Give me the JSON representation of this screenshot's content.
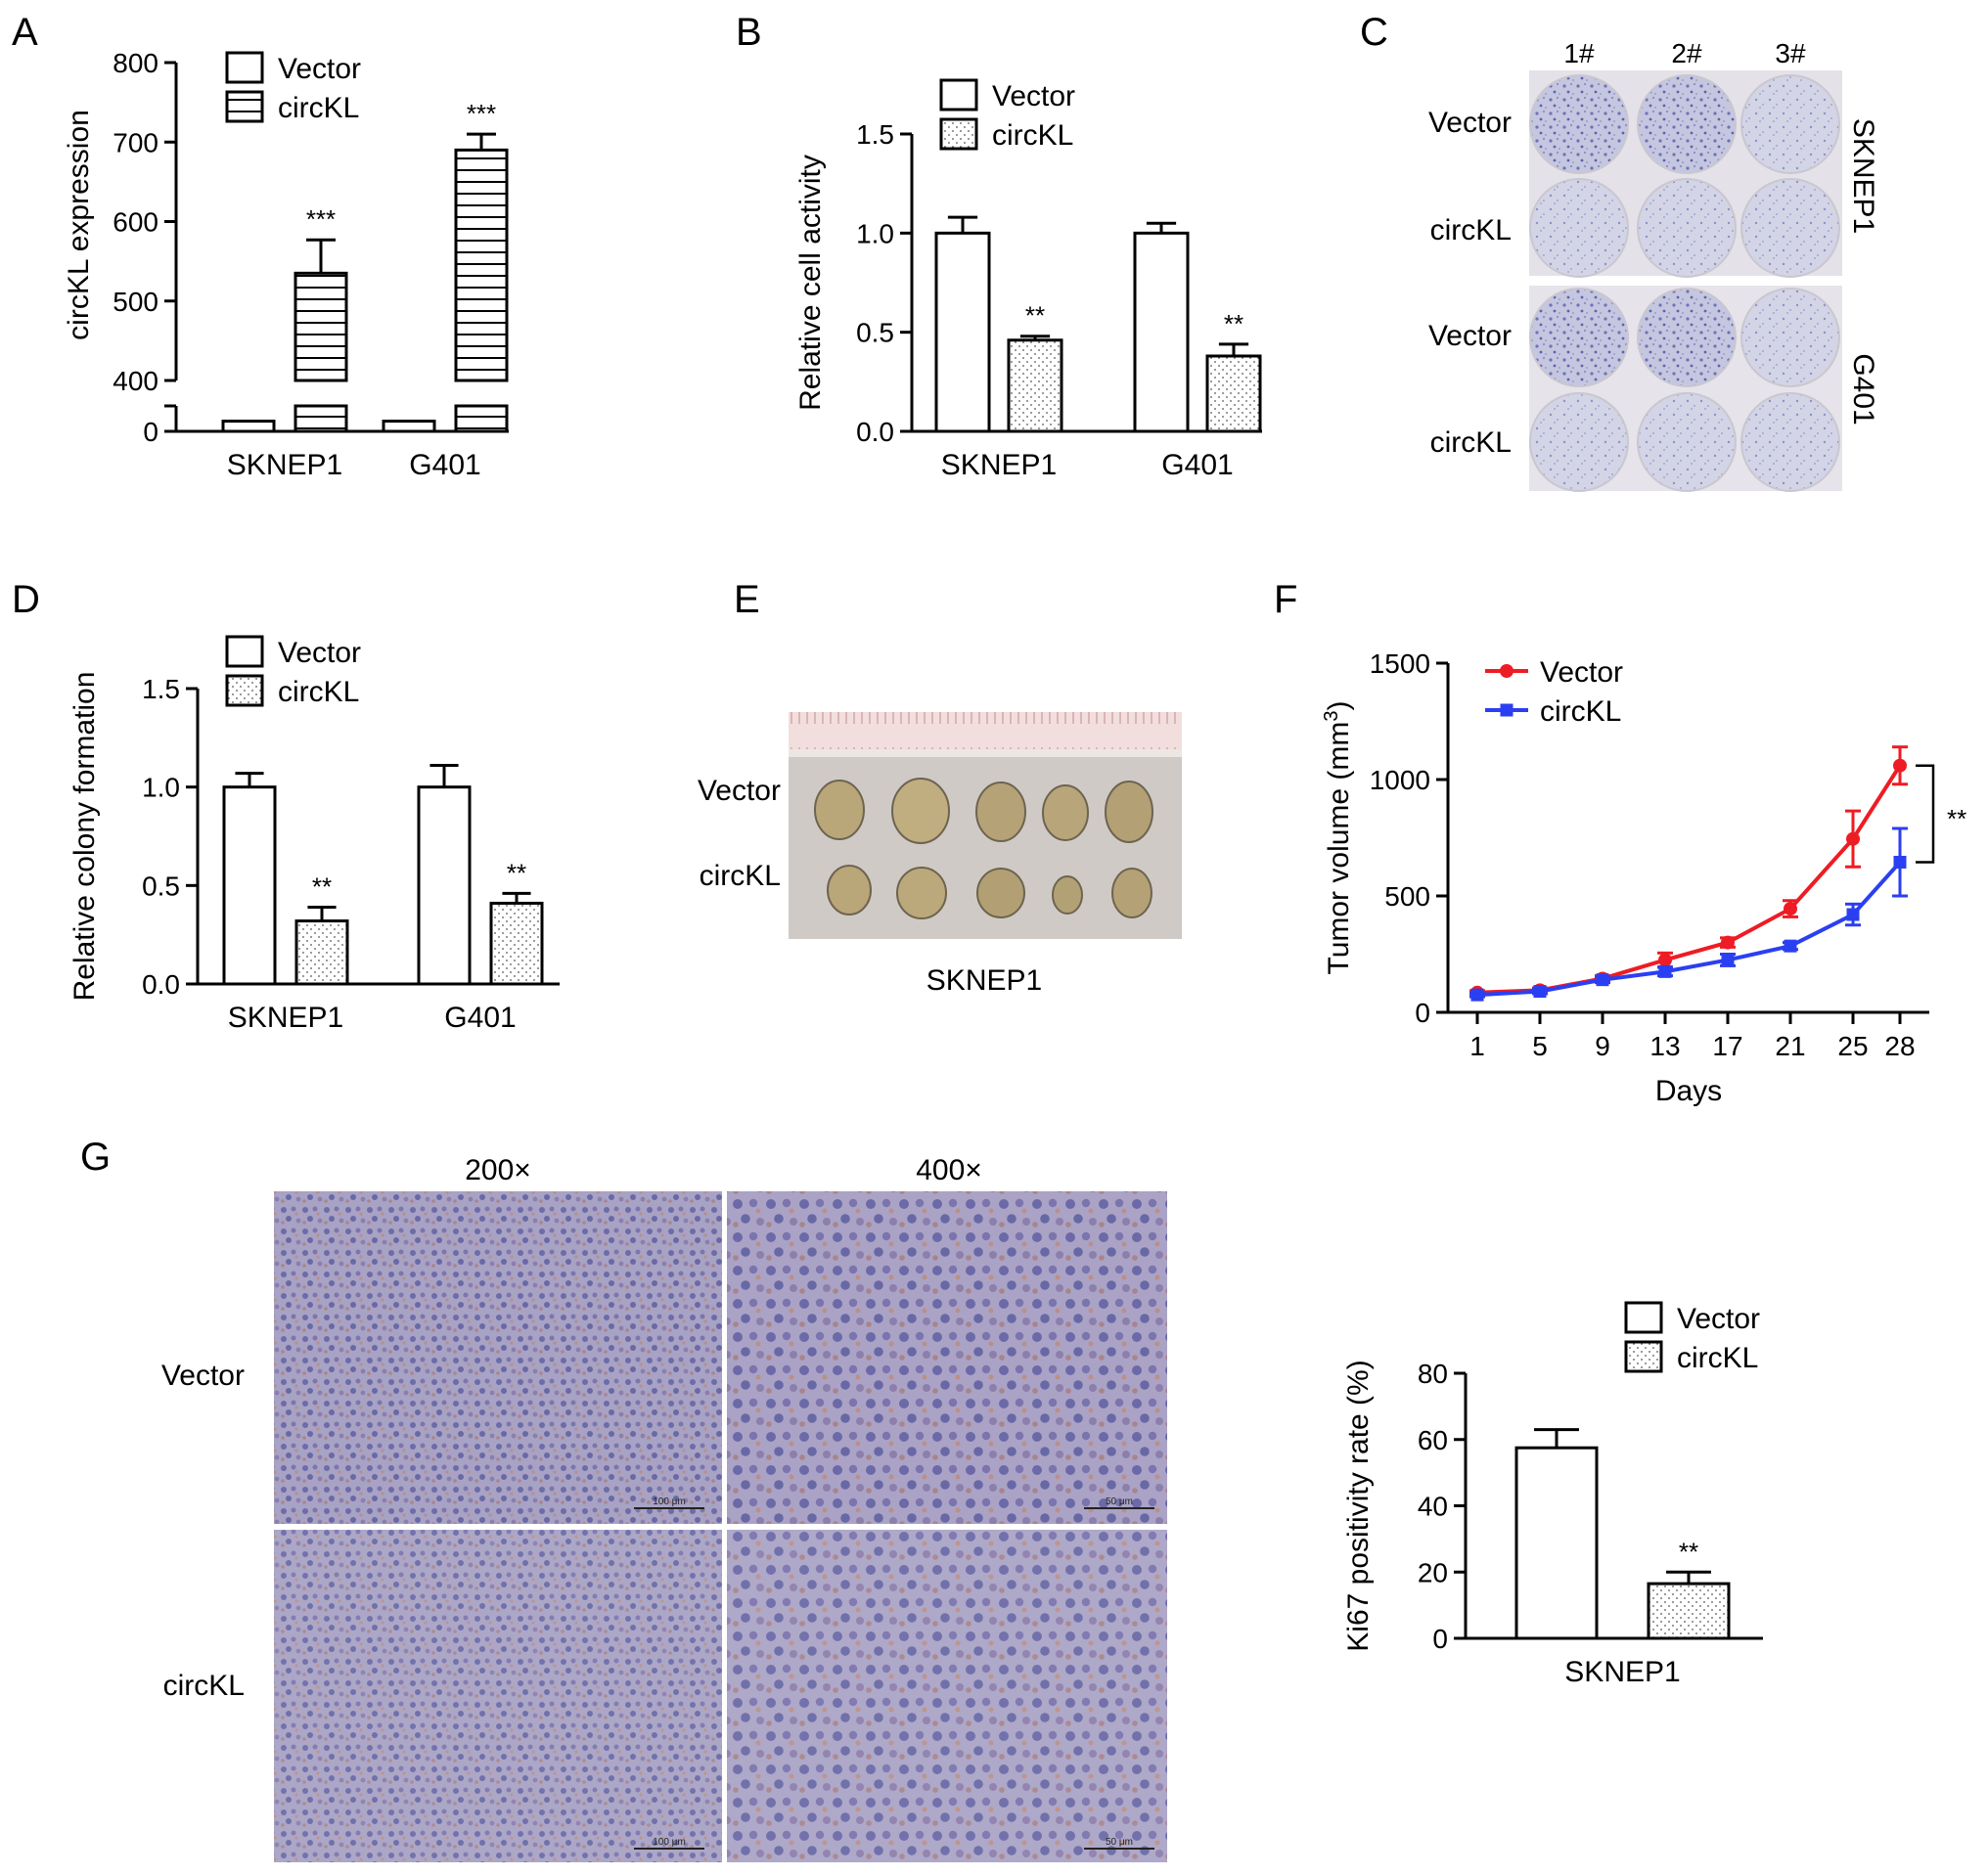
{
  "panels": {
    "A": "A",
    "B": "B",
    "C": "C",
    "D": "D",
    "E": "E",
    "F": "F",
    "G": "G"
  },
  "chart_data": [
    {
      "panel": "A",
      "type": "bar",
      "categories": [
        "SKNEP1",
        "G401"
      ],
      "series": [
        {
          "name": "Vector",
          "values": [
            1,
            1
          ],
          "errors": [
            0,
            0
          ]
        },
        {
          "name": "circKL",
          "values": [
            535,
            690
          ],
          "errors": [
            42,
            20
          ]
        }
      ],
      "ylabel": "circKL expression",
      "yticks": [
        "0",
        "400",
        "500",
        "600",
        "700",
        "800"
      ],
      "ylim": [
        0,
        800
      ],
      "broken_axis": true,
      "significance": [
        "",
        "***",
        "",
        "***"
      ],
      "legend_position": "top-left"
    },
    {
      "panel": "B",
      "type": "bar",
      "categories": [
        "SKNEP1",
        "G401"
      ],
      "series": [
        {
          "name": "Vector",
          "values": [
            1.0,
            1.0
          ],
          "errors": [
            0.08,
            0.05
          ]
        },
        {
          "name": "circKL",
          "values": [
            0.46,
            0.38
          ],
          "errors": [
            0.02,
            0.06
          ]
        }
      ],
      "ylabel": "Relative cell activity",
      "yticks": [
        "0.0",
        "0.5",
        "1.0",
        "1.5"
      ],
      "ylim": [
        0,
        1.5
      ],
      "significance": [
        "",
        "**",
        "",
        "**"
      ],
      "legend_position": "top"
    },
    {
      "panel": "D",
      "type": "bar",
      "categories": [
        "SKNEP1",
        "G401"
      ],
      "series": [
        {
          "name": "Vector",
          "values": [
            1.0,
            1.0
          ],
          "errors": [
            0.07,
            0.11
          ]
        },
        {
          "name": "circKL",
          "values": [
            0.32,
            0.41
          ],
          "errors": [
            0.07,
            0.05
          ]
        }
      ],
      "ylabel": "Relative colony formation",
      "yticks": [
        "0.0",
        "0.5",
        "1.0",
        "1.5"
      ],
      "ylim": [
        0,
        1.5
      ],
      "significance": [
        "",
        "**",
        "",
        "**"
      ],
      "legend_position": "top"
    },
    {
      "panel": "F",
      "type": "line",
      "x": [
        "1",
        "5",
        "9",
        "13",
        "17",
        "21",
        "25",
        "28"
      ],
      "series": [
        {
          "name": "Vector",
          "color": "#ee1c24",
          "values": [
            85,
            95,
            145,
            225,
            300,
            445,
            745,
            1060
          ],
          "errors": [
            8,
            10,
            12,
            30,
            20,
            35,
            120,
            80
          ]
        },
        {
          "name": "circKL",
          "color": "#2b3ff2",
          "values": [
            75,
            90,
            140,
            175,
            225,
            285,
            420,
            645
          ],
          "errors": [
            8,
            10,
            12,
            18,
            25,
            15,
            45,
            145
          ]
        }
      ],
      "xlabel": "Days",
      "ylabel_main": "Tumor volume (mm",
      "ylabel_sup": "3",
      "ylabel_end": ")",
      "yticks": [
        "0",
        "500",
        "1000",
        "1500"
      ],
      "ylim": [
        0,
        1500
      ],
      "significance": "**",
      "legend_position": "top-left"
    },
    {
      "panel": "G-chart",
      "type": "bar",
      "categories": [
        "SKNEP1"
      ],
      "series": [
        {
          "name": "Vector",
          "values": [
            57.5
          ],
          "errors": [
            5.5
          ]
        },
        {
          "name": "circKL",
          "values": [
            16.5
          ],
          "errors": [
            3.5
          ]
        }
      ],
      "ylabel": "Ki67 positivity rate (%)",
      "yticks": [
        "0",
        "20",
        "40",
        "60",
        "80"
      ],
      "ylim": [
        0,
        80
      ],
      "significance": [
        "",
        "**"
      ],
      "legend_position": "top"
    }
  ],
  "panelC": {
    "columns": [
      "1#",
      "2#",
      "3#"
    ],
    "rows": [
      "Vector",
      "circKL",
      "Vector",
      "circKL"
    ],
    "groups": [
      "SKNEP1",
      "G401"
    ]
  },
  "panelE": {
    "rows": [
      "Vector",
      "circKL"
    ],
    "caption": "SKNEP1"
  },
  "panelG": {
    "magnifications": [
      "200×",
      "400×"
    ],
    "rows": [
      "Vector",
      "circKL"
    ],
    "scalebars": [
      "100 μm",
      "50 μm",
      "100 μm",
      "50 μm"
    ]
  }
}
